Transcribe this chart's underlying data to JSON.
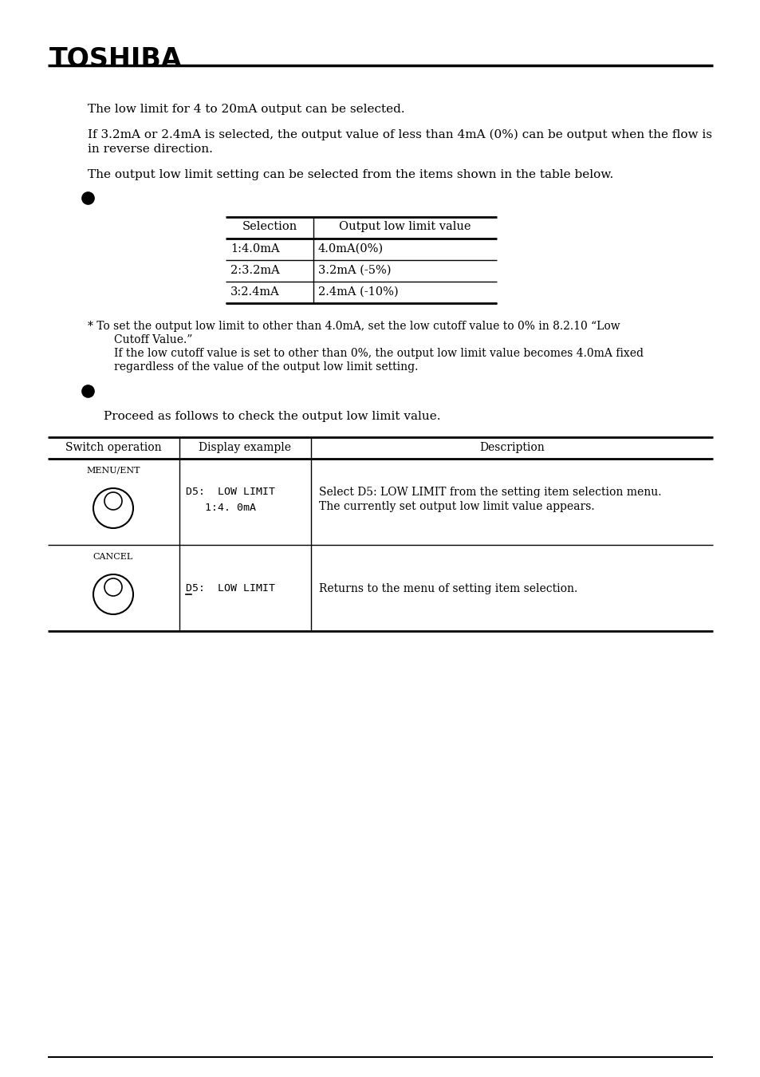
{
  "bg_color": "#ffffff",
  "toshiba_logo": "TOSHIBA",
  "para1": "The low limit for 4 to 20mA output can be selected.",
  "para2a": "If 3.2mA or 2.4mA is selected, the output value of less than 4mA (0%) can be output when the flow is",
  "para2b": "in reverse direction.",
  "para3": "The output low limit setting can be selected from the items shown in the table below.",
  "table1_headers": [
    "Selection",
    "Output low limit value"
  ],
  "table1_rows": [
    [
      "1:4.0mA",
      "4.0mA(0%)"
    ],
    [
      "2:3.2mA",
      "3.2mA (-5%)"
    ],
    [
      "3:2.4mA",
      "2.4mA (-10%)"
    ]
  ],
  "note1": "* To set the output low limit to other than 4.0mA, set the low cutoff value to 0% in 8.2.10 “Low",
  "note2": "Cutoff Value.”",
  "note3": "If the low cutoff value is set to other than 0%, the output low limit value becomes 4.0mA fixed",
  "note4": "regardless of the value of the output low limit setting.",
  "proceed_text": "Proceed as follows to check the output low limit value.",
  "t2_h1": "Switch operation",
  "t2_h2": "Display example",
  "t2_h3": "Description",
  "row1_label": "MENU/ENT",
  "row1_disp1": "D5:  LOW LIMIT",
  "row1_disp2": "   1:4. 0mA",
  "row1_desc1": "Select D5: LOW LIMIT from the setting item selection menu.",
  "row1_desc2": "The currently set output low limit value appears.",
  "row2_label": "CANCEL",
  "row2_disp": "D5:  LOW LIMIT",
  "row2_desc": "Returns to the menu of setting item selection."
}
